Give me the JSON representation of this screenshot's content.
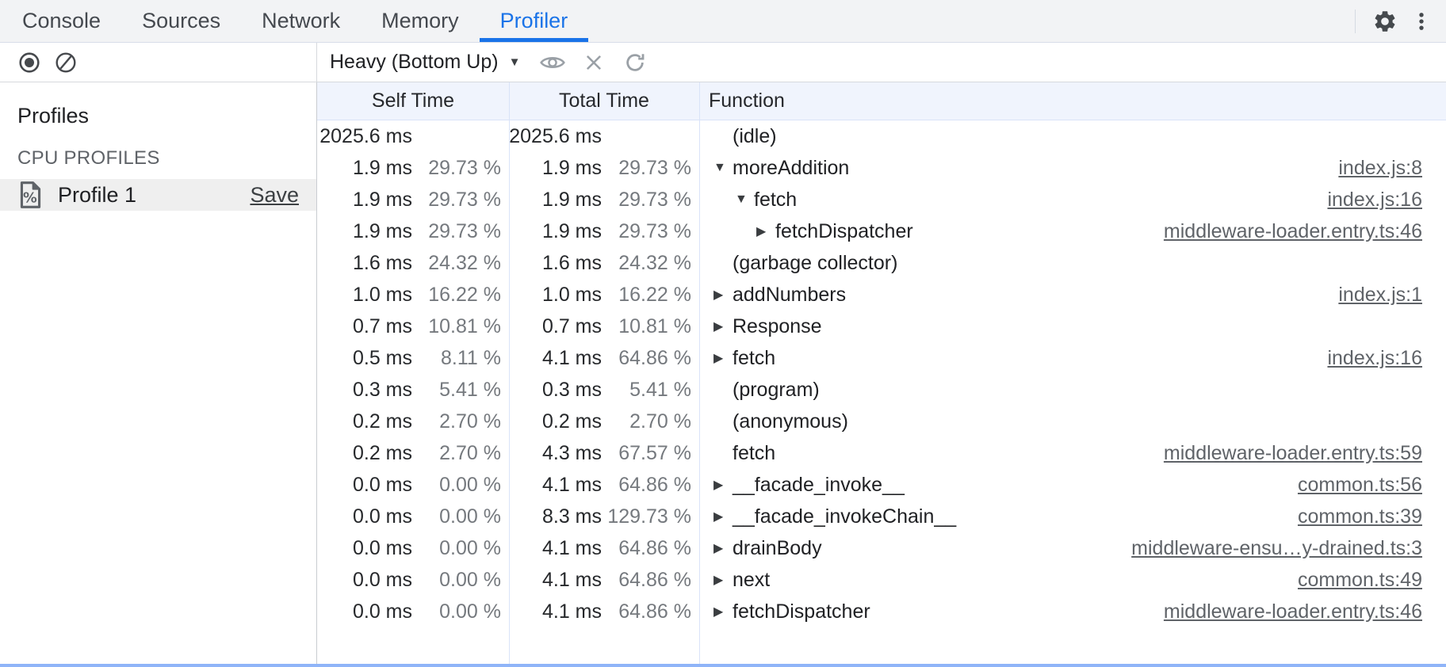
{
  "tabs": {
    "items": [
      "Console",
      "Sources",
      "Network",
      "Memory",
      "Profiler"
    ],
    "active": "Profiler"
  },
  "top_right": {
    "settings_icon": "gear-icon",
    "more_icon": "kebab-menu-icon"
  },
  "toolbar": {
    "record_icon": "record-icon",
    "clear_icon": "clear-icon",
    "view_selector": "Heavy (Bottom Up)",
    "focus_icon": "eye-icon",
    "exclude_icon": "close-icon",
    "restore_icon": "refresh-icon"
  },
  "sidebar": {
    "title": "Profiles",
    "section_label": "CPU PROFILES",
    "profile": {
      "icon": "profile-document-percent-icon",
      "name": "Profile 1",
      "action": "Save"
    }
  },
  "grid": {
    "columns": [
      "Self Time",
      "Total Time",
      "Function"
    ],
    "rows": [
      {
        "self_ms": "2025.6 ms",
        "self_pct": "",
        "total_ms": "2025.6 ms",
        "total_pct": "",
        "fn": "(idle)",
        "level": 0,
        "arrow": "none",
        "link": ""
      },
      {
        "self_ms": "1.9 ms",
        "self_pct": "29.73 %",
        "total_ms": "1.9 ms",
        "total_pct": "29.73 %",
        "fn": "moreAddition",
        "level": 0,
        "arrow": "expanded",
        "link": "index.js:8"
      },
      {
        "self_ms": "1.9 ms",
        "self_pct": "29.73 %",
        "total_ms": "1.9 ms",
        "total_pct": "29.73 %",
        "fn": "fetch",
        "level": 1,
        "arrow": "expanded",
        "link": "index.js:16"
      },
      {
        "self_ms": "1.9 ms",
        "self_pct": "29.73 %",
        "total_ms": "1.9 ms",
        "total_pct": "29.73 %",
        "fn": "fetchDispatcher",
        "level": 2,
        "arrow": "collapsed",
        "link": "middleware-loader.entry.ts:46"
      },
      {
        "self_ms": "1.6 ms",
        "self_pct": "24.32 %",
        "total_ms": "1.6 ms",
        "total_pct": "24.32 %",
        "fn": "(garbage collector)",
        "level": 0,
        "arrow": "none",
        "link": ""
      },
      {
        "self_ms": "1.0 ms",
        "self_pct": "16.22 %",
        "total_ms": "1.0 ms",
        "total_pct": "16.22 %",
        "fn": "addNumbers",
        "level": 0,
        "arrow": "collapsed",
        "link": "index.js:1"
      },
      {
        "self_ms": "0.7 ms",
        "self_pct": "10.81 %",
        "total_ms": "0.7 ms",
        "total_pct": "10.81 %",
        "fn": "Response",
        "level": 0,
        "arrow": "collapsed",
        "link": ""
      },
      {
        "self_ms": "0.5 ms",
        "self_pct": "8.11 %",
        "total_ms": "4.1 ms",
        "total_pct": "64.86 %",
        "fn": "fetch",
        "level": 0,
        "arrow": "collapsed",
        "link": "index.js:16"
      },
      {
        "self_ms": "0.3 ms",
        "self_pct": "5.41 %",
        "total_ms": "0.3 ms",
        "total_pct": "5.41 %",
        "fn": "(program)",
        "level": 0,
        "arrow": "none",
        "link": ""
      },
      {
        "self_ms": "0.2 ms",
        "self_pct": "2.70 %",
        "total_ms": "0.2 ms",
        "total_pct": "2.70 %",
        "fn": "(anonymous)",
        "level": 0,
        "arrow": "none",
        "link": ""
      },
      {
        "self_ms": "0.2 ms",
        "self_pct": "2.70 %",
        "total_ms": "4.3 ms",
        "total_pct": "67.57 %",
        "fn": "fetch",
        "level": 0,
        "arrow": "none",
        "link": "middleware-loader.entry.ts:59"
      },
      {
        "self_ms": "0.0 ms",
        "self_pct": "0.00 %",
        "total_ms": "4.1 ms",
        "total_pct": "64.86 %",
        "fn": "__facade_invoke__",
        "level": 0,
        "arrow": "collapsed",
        "link": "common.ts:56"
      },
      {
        "self_ms": "0.0 ms",
        "self_pct": "0.00 %",
        "total_ms": "8.3 ms",
        "total_pct": "129.73 %",
        "fn": "__facade_invokeChain__",
        "level": 0,
        "arrow": "collapsed",
        "link": "common.ts:39"
      },
      {
        "self_ms": "0.0 ms",
        "self_pct": "0.00 %",
        "total_ms": "4.1 ms",
        "total_pct": "64.86 %",
        "fn": "drainBody",
        "level": 0,
        "arrow": "collapsed",
        "link": "middleware-ensu…y-drained.ts:3"
      },
      {
        "self_ms": "0.0 ms",
        "self_pct": "0.00 %",
        "total_ms": "4.1 ms",
        "total_pct": "64.86 %",
        "fn": "next",
        "level": 0,
        "arrow": "collapsed",
        "link": "common.ts:49"
      },
      {
        "self_ms": "0.0 ms",
        "self_pct": "0.00 %",
        "total_ms": "4.1 ms",
        "total_pct": "64.86 %",
        "fn": "fetchDispatcher",
        "level": 0,
        "arrow": "collapsed",
        "link": "middleware-loader.entry.ts:46"
      }
    ]
  },
  "colors": {
    "accent": "#1a73e8",
    "tabbar_bg": "#f2f3f5",
    "grid_header_bg": "#f0f4fd",
    "grid_divider": "#d9e3f8",
    "pct_text": "#75797e",
    "link_text": "#5f6368",
    "selected_row_bg": "#efefef"
  }
}
